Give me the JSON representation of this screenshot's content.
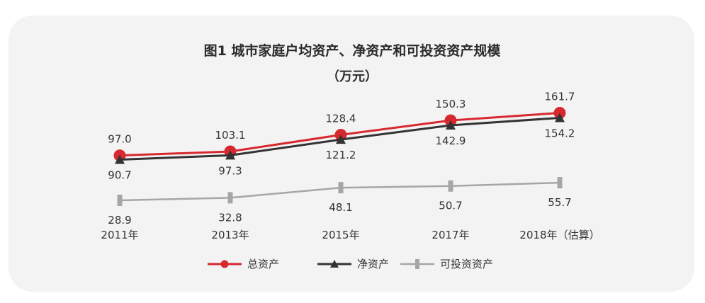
{
  "chart_data": {
    "type": "line",
    "title": "图1  城市家庭户均资产、净资产和可投资资产规模",
    "subtitle": "（万元）",
    "categories": [
      "2011年",
      "2013年",
      "2015年",
      "2017年",
      "2018年（估算）"
    ],
    "series": [
      {
        "name": "总资产",
        "values": [
          97.0,
          103.1,
          128.4,
          150.3,
          161.7
        ],
        "labels": [
          "97.0",
          "103.1",
          "128.4",
          "150.3",
          "161.7"
        ],
        "color": "#d7282f",
        "marker": "circle"
      },
      {
        "name": "净资产",
        "values": [
          90.7,
          97.3,
          121.2,
          142.9,
          154.2
        ],
        "labels": [
          "90.7",
          "97.3",
          "121.2",
          "142.9",
          "154.2"
        ],
        "color": "#333333",
        "marker": "triangle"
      },
      {
        "name": "可投资资产",
        "values": [
          28.9,
          32.8,
          48.1,
          50.7,
          55.7
        ],
        "labels": [
          "28.9",
          "32.8",
          "48.1",
          "50.7",
          "55.7"
        ],
        "color": "#a6a6a6",
        "marker": "bar"
      }
    ],
    "ylim": [
      0,
      180
    ],
    "grid": false,
    "legend": "bottom"
  }
}
